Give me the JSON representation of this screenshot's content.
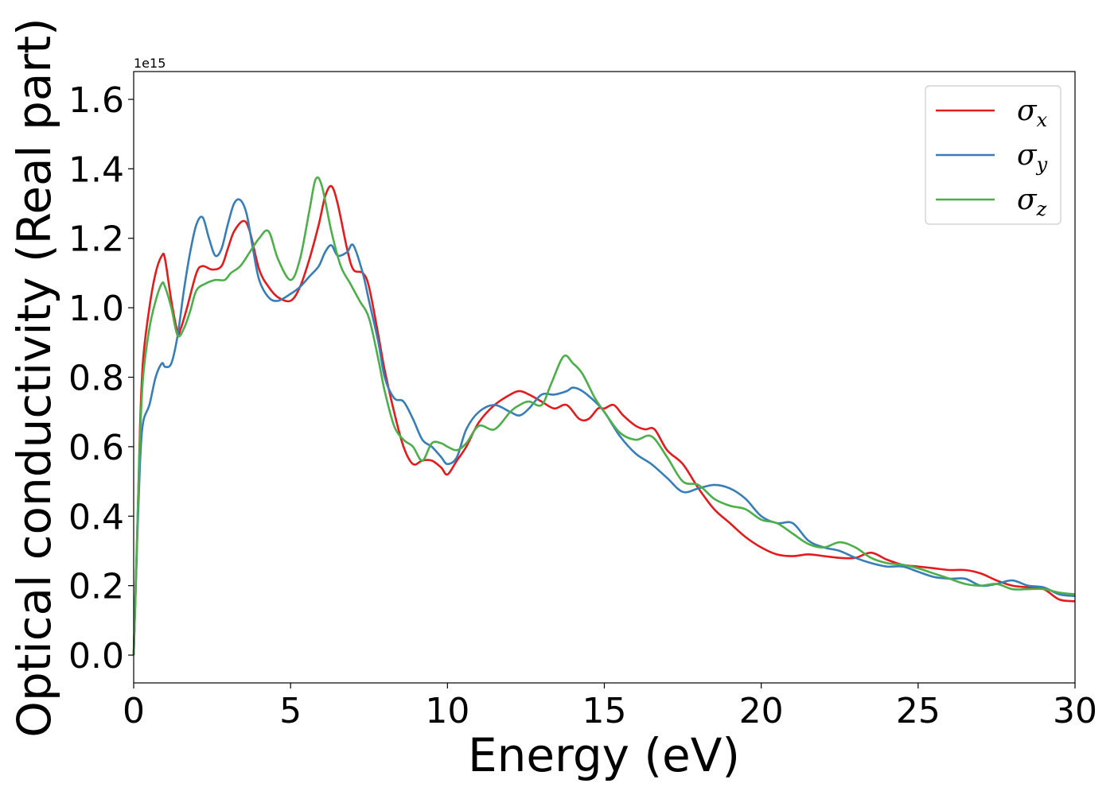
{
  "chart_data": {
    "type": "line",
    "xlabel": "Energy (eV)",
    "ylabel": "Optical conductivity (Real part)",
    "y_offset_label": "1e15",
    "xlim": [
      0,
      30
    ],
    "ylim": [
      -0.08,
      1.68
    ],
    "x_ticks": [
      "0",
      "5",
      "10",
      "15",
      "20",
      "25",
      "30"
    ],
    "y_ticks": [
      "0.0",
      "0.2",
      "0.4",
      "0.6",
      "0.8",
      "1.0",
      "1.2",
      "1.4",
      "1.6"
    ],
    "grid": false,
    "legend_position": "top-right",
    "series": [
      {
        "name": "σx",
        "symbol": "σ",
        "subscript": "x",
        "color": "#e41a1c",
        "x": [
          0,
          0.1,
          0.2,
          0.3,
          0.5,
          0.7,
          0.9,
          1.0,
          1.2,
          1.4,
          1.5,
          1.7,
          2.0,
          2.2,
          2.5,
          2.8,
          3.0,
          3.2,
          3.5,
          3.7,
          4.0,
          4.3,
          4.6,
          5.0,
          5.3,
          5.6,
          5.9,
          6.1,
          6.3,
          6.5,
          6.8,
          7.0,
          7.3,
          7.5,
          7.8,
          8.0,
          8.3,
          8.6,
          8.9,
          9.2,
          9.5,
          9.8,
          10.0,
          10.3,
          10.6,
          11.0,
          11.5,
          12.0,
          12.3,
          12.6,
          13.0,
          13.4,
          13.8,
          14.2,
          14.5,
          14.8,
          15.0,
          15.3,
          15.6,
          16.0,
          16.3,
          16.6,
          17.0,
          17.5,
          18.0,
          18.5,
          19.0,
          19.5,
          20.0,
          20.5,
          21.0,
          21.5,
          22.0,
          22.5,
          23.0,
          23.5,
          24.0,
          24.5,
          25.0,
          25.5,
          26.0,
          26.5,
          27.0,
          27.5,
          28.0,
          28.5,
          29.0,
          29.5,
          30.0
        ],
        "y": [
          0.0,
          0.3,
          0.65,
          0.85,
          1.0,
          1.1,
          1.15,
          1.14,
          1.02,
          0.93,
          0.94,
          1.0,
          1.1,
          1.12,
          1.11,
          1.12,
          1.17,
          1.22,
          1.25,
          1.22,
          1.11,
          1.06,
          1.03,
          1.02,
          1.06,
          1.14,
          1.24,
          1.32,
          1.35,
          1.3,
          1.17,
          1.11,
          1.1,
          1.06,
          0.92,
          0.82,
          0.7,
          0.6,
          0.55,
          0.56,
          0.56,
          0.54,
          0.52,
          0.56,
          0.6,
          0.67,
          0.72,
          0.75,
          0.76,
          0.75,
          0.73,
          0.71,
          0.72,
          0.68,
          0.68,
          0.71,
          0.71,
          0.72,
          0.69,
          0.66,
          0.65,
          0.65,
          0.59,
          0.55,
          0.48,
          0.42,
          0.38,
          0.34,
          0.31,
          0.29,
          0.285,
          0.29,
          0.285,
          0.28,
          0.28,
          0.295,
          0.275,
          0.26,
          0.255,
          0.25,
          0.245,
          0.245,
          0.235,
          0.215,
          0.2,
          0.195,
          0.19,
          0.16,
          0.155
        ]
      },
      {
        "name": "σy",
        "symbol": "σ",
        "subscript": "y",
        "color": "#377eb8",
        "x": [
          0,
          0.1,
          0.2,
          0.3,
          0.5,
          0.7,
          0.9,
          1.0,
          1.2,
          1.4,
          1.6,
          1.8,
          2.0,
          2.2,
          2.4,
          2.6,
          2.8,
          3.0,
          3.2,
          3.4,
          3.6,
          3.8,
          4.0,
          4.3,
          4.6,
          5.0,
          5.3,
          5.6,
          5.9,
          6.1,
          6.3,
          6.5,
          6.8,
          7.0,
          7.3,
          7.5,
          7.8,
          8.0,
          8.3,
          8.6,
          8.9,
          9.2,
          9.5,
          9.8,
          10.0,
          10.3,
          10.6,
          11.0,
          11.5,
          12.0,
          12.3,
          12.6,
          13.0,
          13.4,
          13.8,
          14.0,
          14.3,
          14.7,
          15.0,
          15.5,
          16.0,
          16.5,
          17.0,
          17.5,
          18.0,
          18.5,
          19.0,
          19.5,
          20.0,
          20.5,
          21.0,
          21.5,
          22.0,
          22.5,
          23.0,
          23.5,
          24.0,
          24.5,
          25.0,
          25.5,
          26.0,
          26.5,
          27.0,
          27.5,
          28.0,
          28.5,
          29.0,
          29.5,
          30.0
        ],
        "y": [
          0.0,
          0.3,
          0.55,
          0.67,
          0.72,
          0.8,
          0.84,
          0.83,
          0.84,
          0.92,
          1.05,
          1.16,
          1.24,
          1.26,
          1.2,
          1.15,
          1.17,
          1.24,
          1.3,
          1.31,
          1.27,
          1.17,
          1.08,
          1.03,
          1.02,
          1.04,
          1.06,
          1.09,
          1.12,
          1.16,
          1.18,
          1.15,
          1.16,
          1.18,
          1.1,
          1.02,
          0.9,
          0.8,
          0.74,
          0.73,
          0.68,
          0.62,
          0.6,
          0.57,
          0.55,
          0.57,
          0.65,
          0.7,
          0.72,
          0.7,
          0.69,
          0.71,
          0.75,
          0.75,
          0.76,
          0.77,
          0.76,
          0.73,
          0.7,
          0.63,
          0.58,
          0.55,
          0.51,
          0.47,
          0.48,
          0.49,
          0.48,
          0.45,
          0.4,
          0.38,
          0.38,
          0.33,
          0.31,
          0.3,
          0.28,
          0.265,
          0.255,
          0.255,
          0.24,
          0.225,
          0.22,
          0.22,
          0.2,
          0.205,
          0.215,
          0.2,
          0.195,
          0.175,
          0.17
        ]
      },
      {
        "name": "σz",
        "symbol": "σ",
        "subscript": "z",
        "color": "#4daf4a",
        "x": [
          0,
          0.1,
          0.2,
          0.3,
          0.5,
          0.7,
          0.9,
          1.0,
          1.2,
          1.4,
          1.6,
          1.8,
          2.0,
          2.3,
          2.6,
          2.9,
          3.1,
          3.4,
          3.7,
          4.0,
          4.3,
          4.6,
          5.0,
          5.3,
          5.6,
          5.8,
          6.0,
          6.3,
          6.6,
          6.9,
          7.2,
          7.5,
          7.8,
          8.0,
          8.3,
          8.6,
          8.9,
          9.2,
          9.5,
          9.8,
          10.0,
          10.3,
          10.6,
          11.0,
          11.5,
          12.0,
          12.3,
          12.6,
          13.0,
          13.3,
          13.7,
          14.0,
          14.3,
          14.7,
          15.0,
          15.5,
          16.0,
          16.5,
          17.0,
          17.5,
          18.0,
          18.5,
          19.0,
          19.5,
          20.0,
          20.5,
          21.0,
          21.5,
          22.0,
          22.5,
          23.0,
          23.5,
          24.0,
          24.5,
          25.0,
          25.5,
          26.0,
          26.5,
          27.0,
          27.5,
          28.0,
          28.5,
          29.0,
          29.5,
          30.0
        ],
        "y": [
          0.0,
          0.32,
          0.62,
          0.8,
          0.94,
          1.02,
          1.07,
          1.06,
          1.0,
          0.92,
          0.94,
          0.99,
          1.05,
          1.07,
          1.08,
          1.08,
          1.1,
          1.12,
          1.16,
          1.2,
          1.22,
          1.14,
          1.08,
          1.14,
          1.28,
          1.37,
          1.35,
          1.22,
          1.12,
          1.07,
          1.02,
          0.97,
          0.85,
          0.76,
          0.66,
          0.62,
          0.6,
          0.56,
          0.61,
          0.61,
          0.6,
          0.59,
          0.61,
          0.66,
          0.65,
          0.7,
          0.72,
          0.73,
          0.72,
          0.78,
          0.86,
          0.84,
          0.81,
          0.74,
          0.7,
          0.64,
          0.62,
          0.63,
          0.57,
          0.5,
          0.49,
          0.45,
          0.43,
          0.42,
          0.39,
          0.38,
          0.35,
          0.32,
          0.31,
          0.325,
          0.31,
          0.28,
          0.265,
          0.26,
          0.25,
          0.235,
          0.22,
          0.205,
          0.2,
          0.205,
          0.19,
          0.19,
          0.19,
          0.18,
          0.175
        ]
      }
    ]
  }
}
